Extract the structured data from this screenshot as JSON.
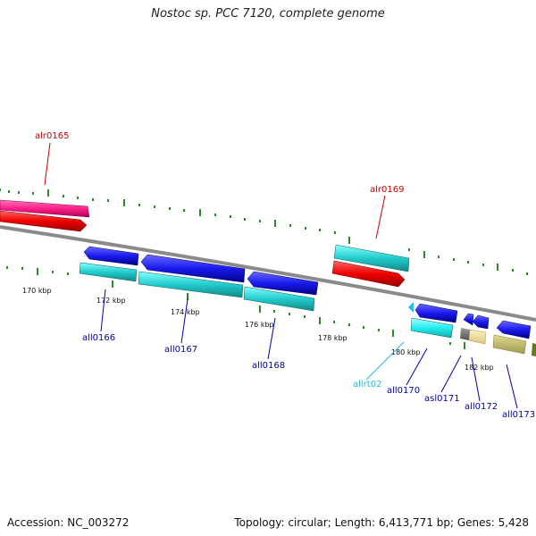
{
  "title": "Nostoc sp. PCC 7120, complete genome",
  "footer": {
    "accession": "Accession: NC_003272",
    "stats": "Topology: circular; Length: 6,413,771 bp; Genes: 5,428"
  },
  "colors": {
    "backbone": "#8a8a8a",
    "tick": "#2a8a2a",
    "forward_label": "#cc0000",
    "reverse_label": "#0000aa",
    "rna_label": "#22bbdd"
  },
  "kbp_labels": [
    "170 kbp",
    "172 kbp",
    "174 kbp",
    "176 kbp",
    "178 kbp",
    "180 kbp",
    "182 kbp"
  ],
  "genes": [
    {
      "name": "alr0165",
      "strand": "forward",
      "color": "#ff2288"
    },
    {
      "name": "alr0169",
      "strand": "forward",
      "color": "#22cccc"
    },
    {
      "name": "all0166",
      "strand": "reverse",
      "color": "#1a1aee"
    },
    {
      "name": "all0167",
      "strand": "reverse",
      "color": "#1a1aee"
    },
    {
      "name": "all0168",
      "strand": "reverse",
      "color": "#1a1aee"
    },
    {
      "name": "allrt02",
      "strand": "reverse",
      "color": "#22ccee"
    },
    {
      "name": "all0170",
      "strand": "reverse",
      "color": "#1a1aee"
    },
    {
      "name": "asl0171",
      "strand": "reverse",
      "color": "#1a1aee"
    },
    {
      "name": "all0172",
      "strand": "reverse",
      "color": "#1a1aee"
    },
    {
      "name": "all0173",
      "strand": "reverse",
      "color": "#1a1aee"
    }
  ]
}
